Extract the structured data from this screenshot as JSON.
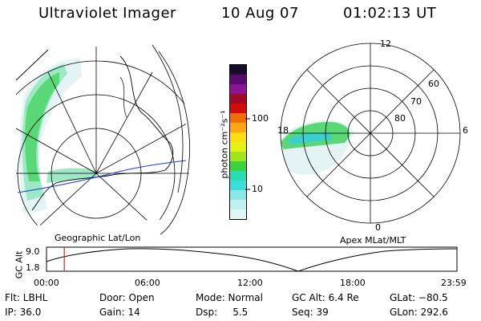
{
  "header": {
    "instrument": "Ultraviolet Imager",
    "date": "10 Aug 07",
    "time": "01:02:13 UT"
  },
  "left_map": {
    "caption": "Geographic Lat/Lon"
  },
  "right_map": {
    "caption": "Apex MLat/MLT",
    "mlt_labels": [
      "12",
      "18",
      "6",
      "0"
    ],
    "lat_labels": [
      "60",
      "70",
      "80"
    ]
  },
  "colorbar": {
    "unit_label": "photon cm⁻²s⁻¹",
    "ticks": [
      "100",
      "10"
    ],
    "colors": [
      "#140c28",
      "#5a0a6e",
      "#8c1496",
      "#a00a28",
      "#d20a0a",
      "#f06e0a",
      "#ffa514",
      "#ffdc14",
      "#e6f014",
      "#a0e61e",
      "#3cd23c",
      "#28dcb4",
      "#3cdcdc",
      "#8ce6e6",
      "#bef0f0",
      "#e1f5f5"
    ]
  },
  "altitude_plot": {
    "ylabel": "GC Alt",
    "yticks": [
      "9.0",
      "1.8"
    ],
    "xticks": [
      "00:00",
      "06:00",
      "12:00",
      "18:00",
      "23:59"
    ],
    "marker_time_hours": 1.04,
    "marker_color": "#dd2222"
  },
  "info": {
    "flt": "Flt: LBHL",
    "ip": "IP: 36.0",
    "door": "Door: Open",
    "gain": "Gain: 14",
    "mode": "Mode: Normal",
    "dsp": "Dsp:     5.5",
    "gc_alt": "GC Alt: 6.4 Re",
    "seq": "Seq: 39",
    "glat": "GLat: −80.5",
    "glon": "GLon: 292.6"
  }
}
